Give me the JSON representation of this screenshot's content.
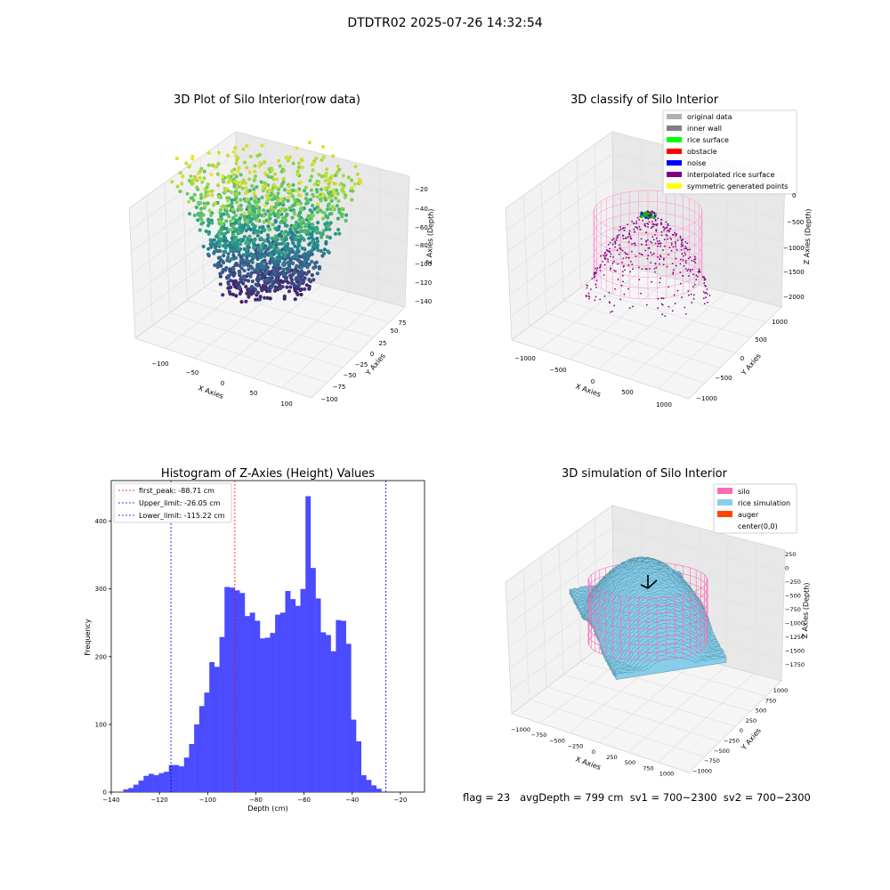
{
  "figure": {
    "suptitle": "DTDTR02 2025-07-26 14:32:54",
    "status_line": "flag = 23   avgDepth = 799 cm  sv1 = 700~2300  sv2 = 700~2300"
  },
  "panels": {
    "raw": {
      "title": "3D Plot of Silo Interior(row data)",
      "xlabel": "X Axies",
      "ylabel": "Y Axies",
      "zlabel": "Z Axies (Depth)",
      "xticks": [
        "−100",
        "−50",
        "0",
        "50",
        "100"
      ],
      "yticks": [
        "75",
        "50",
        "25",
        "0",
        "−25",
        "−50",
        "−75",
        "−100"
      ],
      "zticks": [
        "−20",
        "−40",
        "−60",
        "−80",
        "−100",
        "−120",
        "−140"
      ],
      "colormap": [
        "#440154",
        "#3b528b",
        "#21918c",
        "#5ec962",
        "#fde725"
      ]
    },
    "classify": {
      "title": "3D classify of Silo Interior",
      "xlabel": "X Axies",
      "ylabel": "Y Axies",
      "zlabel": "Z Axies (Depth)",
      "xticks": [
        "−1000",
        "−500",
        "0",
        "500",
        "1000"
      ],
      "yticks": [
        "1000",
        "500",
        "0",
        "−500",
        "−1000"
      ],
      "zticks": [
        "0",
        "−500",
        "−1000",
        "−1500",
        "−2000"
      ],
      "legend": [
        {
          "label": "original data",
          "color": "#b0b0b0"
        },
        {
          "label": "inner wall",
          "color": "#808080"
        },
        {
          "label": "rice surface",
          "color": "#00ff00"
        },
        {
          "label": "obstacle",
          "color": "#ff0000"
        },
        {
          "label": "noise",
          "color": "#0000ff"
        },
        {
          "label": "interpolated rice surface",
          "color": "#800080"
        },
        {
          "label": "symmetric generated points",
          "color": "#ffff00"
        }
      ]
    },
    "simulation": {
      "title": "3D simulation of Silo Interior",
      "xlabel": "X Axies",
      "ylabel": "Y Axies",
      "zlabel": "Z Axies (Depth)",
      "xticks": [
        "−1000",
        "−750",
        "−500",
        "−250",
        "0",
        "250",
        "500",
        "750",
        "1000"
      ],
      "yticks": [
        "1000",
        "750",
        "500",
        "250",
        "0",
        "−250",
        "−500",
        "−750",
        "−1000"
      ],
      "zticks": [
        "250",
        "0",
        "−250",
        "−500",
        "−750",
        "−1000",
        "−1250",
        "−1500",
        "−1750"
      ],
      "legend": [
        {
          "label": "silo",
          "color": "#ff69b4"
        },
        {
          "label": "rice simulation",
          "color": "#87ceeb"
        },
        {
          "label": "auger",
          "color": "#ff4500"
        },
        {
          "label": "center(0,0)",
          "color": ""
        }
      ]
    }
  },
  "chart_data": [
    {
      "type": "scatter",
      "title": "3D Plot of Silo Interior(row data)",
      "xlabel": "X Axies",
      "ylabel": "Y Axies",
      "zlabel": "Z Axies (Depth)",
      "xlim": [
        -140,
        120
      ],
      "ylim": [
        -100,
        90
      ],
      "zlim": [
        -145,
        -15
      ]
    },
    {
      "type": "scatter",
      "title": "3D classify of Silo Interior",
      "xlabel": "X Axies",
      "ylabel": "Y Axies",
      "zlabel": "Z Axies (Depth)",
      "xlim": [
        -1200,
        1200
      ],
      "ylim": [
        -1200,
        1200
      ],
      "zlim": [
        -2100,
        0
      ]
    },
    {
      "type": "bar",
      "title": "Histogram of Z-Axies (Height) Values",
      "xlabel": "Depth (cm)",
      "ylabel": "Frequency",
      "xlim": [
        -140,
        -10
      ],
      "ylim": [
        0,
        460
      ],
      "grid": false,
      "legend_position": "top-left",
      "xticks": [
        -140,
        -120,
        -100,
        -80,
        -60,
        -40,
        -20
      ],
      "yticks": [
        0,
        100,
        200,
        300,
        400
      ],
      "bin_start": -135,
      "bin_width": 2.1,
      "values": [
        4,
        6,
        11,
        17,
        24,
        27,
        25,
        28,
        30,
        40,
        40,
        38,
        51,
        71,
        100,
        127,
        147,
        192,
        185,
        229,
        303,
        302,
        298,
        294,
        260,
        265,
        253,
        227,
        228,
        235,
        262,
        265,
        297,
        285,
        275,
        300,
        437,
        331,
        286,
        236,
        232,
        208,
        254,
        253,
        219,
        107,
        75,
        25,
        18,
        10,
        5
      ],
      "vlines": [
        {
          "label": "first_peak: -88.71 cm",
          "x": -88.71,
          "color": "#ff0000"
        },
        {
          "label": "Upper_limit: -26.05 cm",
          "x": -26.05,
          "color": "#0000cc"
        },
        {
          "label": "Lower_limit: -115.22 cm",
          "x": -115.22,
          "color": "#0000cc"
        }
      ],
      "bar_color": "#4b4bff"
    },
    {
      "type": "surface",
      "title": "3D simulation of Silo Interior",
      "xlabel": "X Axies",
      "ylabel": "Y Axies",
      "zlabel": "Z Axies (Depth)",
      "xlim": [
        -1100,
        1100
      ],
      "ylim": [
        -1100,
        1100
      ],
      "zlim": [
        -1850,
        350
      ]
    }
  ]
}
